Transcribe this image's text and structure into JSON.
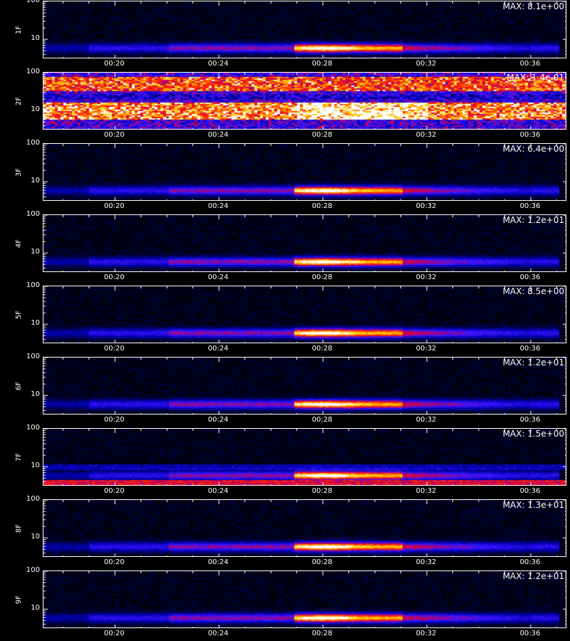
{
  "figure": {
    "xaxis_title": ""
  },
  "chart_data": [
    {
      "type": "heatmap",
      "ylabel": "1F",
      "max_label": "MAX: 8.1e+00",
      "yticks": [
        "100",
        "10"
      ],
      "xticks": [
        "00:20",
        "00:24",
        "00:28",
        "00:32",
        "00:36"
      ],
      "yscale": "log",
      "profile": "clean"
    },
    {
      "type": "heatmap",
      "ylabel": "2F",
      "max_label": "MAX: 1.4e-01",
      "yticks": [
        "100",
        "10"
      ],
      "xticks": [
        "00:20",
        "00:24",
        "00:28",
        "00:32",
        "00:36"
      ],
      "yscale": "log",
      "profile": "noisy"
    },
    {
      "type": "heatmap",
      "ylabel": "3F",
      "max_label": "MAX: 6.4e+00",
      "yticks": [
        "100",
        "10"
      ],
      "xticks": [
        "00:20",
        "00:24",
        "00:28",
        "00:32",
        "00:36"
      ],
      "yscale": "log",
      "profile": "clean"
    },
    {
      "type": "heatmap",
      "ylabel": "4F",
      "max_label": "MAX: 1.2e+01",
      "yticks": [
        "100",
        "10"
      ],
      "xticks": [
        "00:20",
        "00:24",
        "00:28",
        "00:32",
        "00:36"
      ],
      "yscale": "log",
      "profile": "clean"
    },
    {
      "type": "heatmap",
      "ylabel": "5F",
      "max_label": "MAX: 8.5e+00",
      "yticks": [
        "100",
        "10"
      ],
      "xticks": [
        "00:20",
        "00:24",
        "00:28",
        "00:32",
        "00:36"
      ],
      "yscale": "log",
      "profile": "clean"
    },
    {
      "type": "heatmap",
      "ylabel": "6F",
      "max_label": "MAX: 1.2e+01",
      "yticks": [
        "100",
        "10"
      ],
      "xticks": [
        "00:20",
        "00:24",
        "00:28",
        "00:32",
        "00:36"
      ],
      "yscale": "log",
      "profile": "clean"
    },
    {
      "type": "heatmap",
      "ylabel": "7F",
      "max_label": "MAX: 1.5e+00",
      "yticks": [
        "100",
        "10"
      ],
      "xticks": [
        "00:20",
        "00:24",
        "00:28",
        "00:32",
        "00:36"
      ],
      "yscale": "log",
      "profile": "banded"
    },
    {
      "type": "heatmap",
      "ylabel": "8F",
      "max_label": "MAX: 1.3e+01",
      "yticks": [
        "100",
        "10"
      ],
      "xticks": [
        "00:20",
        "00:24",
        "00:28",
        "00:32",
        "00:36"
      ],
      "yscale": "log",
      "profile": "clean"
    },
    {
      "type": "heatmap",
      "ylabel": "9F",
      "max_label": "MAX: 1.2e+01",
      "yticks": [
        "100",
        "10"
      ],
      "xticks": [
        "00:20",
        "00:24",
        "00:28",
        "00:32",
        "00:36"
      ],
      "yscale": "log",
      "profile": "clean"
    }
  ]
}
